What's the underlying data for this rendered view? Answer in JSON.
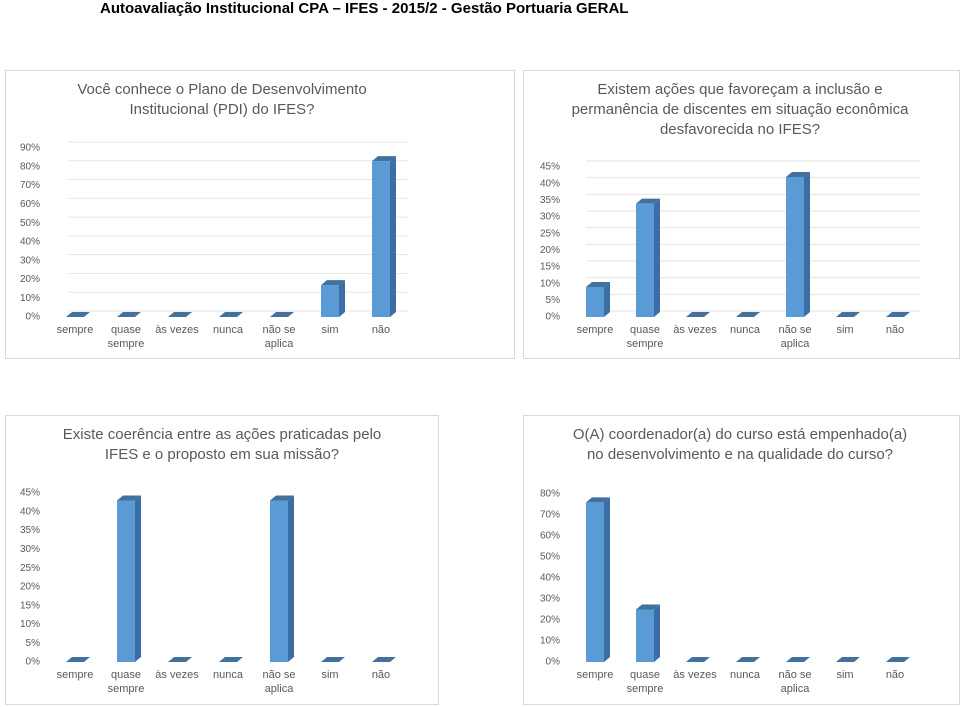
{
  "header": {
    "title": "Autoavaliação Institucional CPA – IFES - 2015/2 - Gestão Portuaria GERAL"
  },
  "chart_data": [
    {
      "type": "bar",
      "title": "Você conhece o Plano de Desenvolvimento Institucional (PDI) do IFES?",
      "categories": [
        "sempre",
        "quase sempre",
        "às vezes",
        "nunca",
        "não se aplica",
        "sim",
        "não"
      ],
      "values": [
        0,
        0,
        0,
        0,
        0,
        17,
        83
      ],
      "color": "#5b9bd5",
      "ylim": [
        0,
        90
      ],
      "yticks": [
        {
          "value": 0,
          "label": "0%"
        },
        {
          "value": 10,
          "label": "10%"
        },
        {
          "value": 20,
          "label": "20%"
        },
        {
          "value": 30,
          "label": "30%"
        },
        {
          "value": 40,
          "label": "40%"
        },
        {
          "value": 50,
          "label": "50%"
        },
        {
          "value": 60,
          "label": "60%"
        },
        {
          "value": 70,
          "label": "70%"
        },
        {
          "value": 80,
          "label": "80%"
        },
        {
          "value": 90,
          "label": "90%"
        }
      ],
      "grid": true
    },
    {
      "type": "bar",
      "title": "Existem ações que favoreçam a inclusão e permanência de discentes em situação econômica desfavorecida no IFES?",
      "categories": [
        "sempre",
        "quase sempre",
        "às vezes",
        "nunca",
        "não se aplica",
        "sim",
        "não"
      ],
      "values": [
        9,
        34,
        0,
        0,
        42,
        0,
        0
      ],
      "color": "#5b9bd5",
      "ylim": [
        0,
        45
      ],
      "yticks": [
        {
          "value": 0,
          "label": "0%"
        },
        {
          "value": 5,
          "label": "5%"
        },
        {
          "value": 10,
          "label": "10%"
        },
        {
          "value": 15,
          "label": "15%"
        },
        {
          "value": 20,
          "label": "20%"
        },
        {
          "value": 25,
          "label": "25%"
        },
        {
          "value": 30,
          "label": "30%"
        },
        {
          "value": 35,
          "label": "35%"
        },
        {
          "value": 40,
          "label": "40%"
        },
        {
          "value": 45,
          "label": "45%"
        }
      ],
      "grid": true
    },
    {
      "type": "bar",
      "title": "Existe coerência entre as ações praticadas pelo IFES e o proposto em sua missão?",
      "categories": [
        "sempre",
        "quase sempre",
        "às vezes",
        "nunca",
        "não se aplica",
        "sim",
        "não"
      ],
      "values": [
        0,
        43,
        0,
        0,
        43,
        0,
        0
      ],
      "color": "#5b9bd5",
      "ylim": [
        0,
        45
      ],
      "yticks": [
        {
          "value": 0,
          "label": "0%"
        },
        {
          "value": 5,
          "label": "5%"
        },
        {
          "value": 10,
          "label": "10%"
        },
        {
          "value": 15,
          "label": "15%"
        },
        {
          "value": 20,
          "label": "20%"
        },
        {
          "value": 25,
          "label": "25%"
        },
        {
          "value": 30,
          "label": "30%"
        },
        {
          "value": 35,
          "label": "35%"
        },
        {
          "value": 40,
          "label": "40%"
        },
        {
          "value": 45,
          "label": "45%"
        }
      ],
      "grid": false
    },
    {
      "type": "bar",
      "title": "O(A) coordenador(a) do curso está empenhado(a) no desenvolvimento e na qualidade do curso?",
      "categories": [
        "sempre",
        "quase sempre",
        "às vezes",
        "nunca",
        "não se aplica",
        "sim",
        "não"
      ],
      "values": [
        76,
        25,
        0,
        0,
        0,
        0,
        0
      ],
      "color": "#5b9bd5",
      "ylim": [
        0,
        80
      ],
      "yticks": [
        {
          "value": 0,
          "label": "0%"
        },
        {
          "value": 10,
          "label": "10%"
        },
        {
          "value": 20,
          "label": "20%"
        },
        {
          "value": 30,
          "label": "30%"
        },
        {
          "value": 40,
          "label": "40%"
        },
        {
          "value": 50,
          "label": "50%"
        },
        {
          "value": 60,
          "label": "60%"
        },
        {
          "value": 70,
          "label": "70%"
        },
        {
          "value": 80,
          "label": "80%"
        }
      ],
      "grid": false
    }
  ]
}
